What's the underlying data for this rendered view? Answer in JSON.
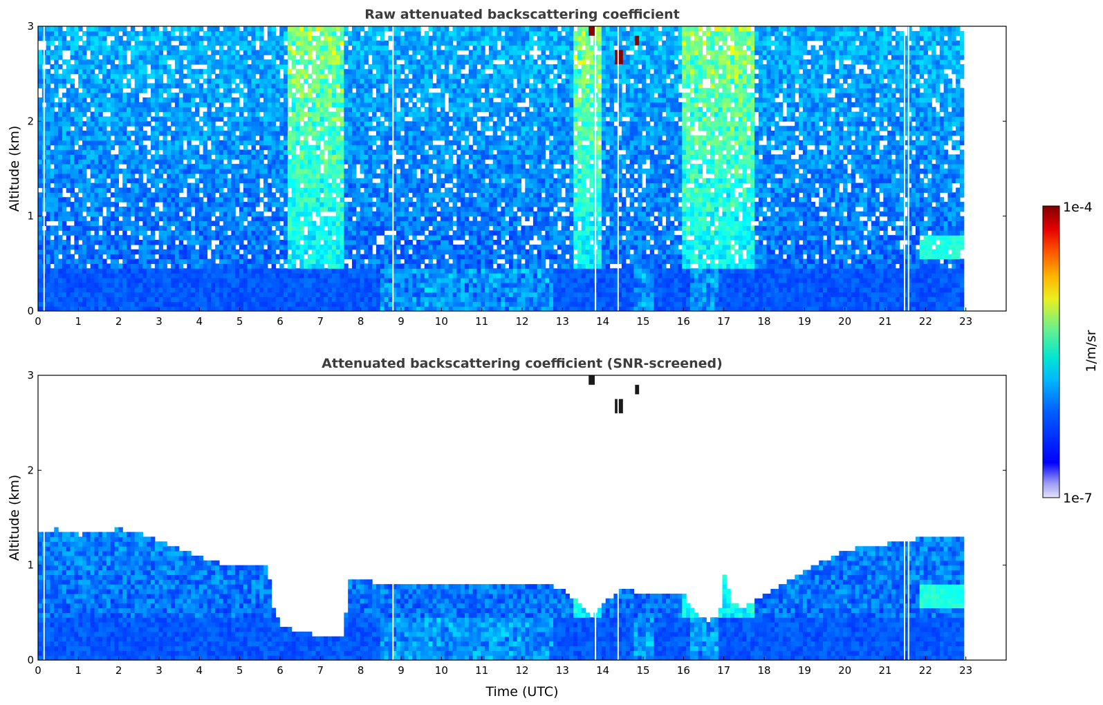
{
  "chart_data": [
    {
      "type": "heatmap",
      "title": "Raw attenuated backscattering coefficient",
      "xlabel": "",
      "ylabel": "Altitude (km)",
      "xlim": [
        0,
        24
      ],
      "ylim": [
        0,
        3
      ],
      "x_ticks": [
        "0",
        "1",
        "2",
        "3",
        "4",
        "5",
        "6",
        "7",
        "8",
        "9",
        "10",
        "11",
        "12",
        "13",
        "14",
        "15",
        "16",
        "17",
        "18",
        "19",
        "20",
        "21",
        "22",
        "23"
      ],
      "y_ticks": [
        "0",
        "1",
        "2",
        "3"
      ],
      "data_time_range": [
        0,
        22.95
      ],
      "gaps_utc": [
        0.15,
        8.8,
        13.82,
        14.38,
        21.48,
        21.58
      ],
      "features": [
        {
          "kind": "surface_layer",
          "x": [
            0,
            23
          ],
          "top_km": 0.45
        },
        {
          "kind": "elevated_noise",
          "x": [
            6.2,
            7.6
          ],
          "level": "high"
        },
        {
          "kind": "elevated_noise",
          "x": [
            13.3,
            14.0
          ],
          "level": "high"
        },
        {
          "kind": "elevated_noise",
          "x": [
            16.0,
            17.8
          ],
          "level": "high"
        },
        {
          "kind": "cloud",
          "x": [
            13.65,
            13.8
          ],
          "y_km": [
            2.9,
            3.0
          ]
        },
        {
          "kind": "cloud",
          "x": [
            14.3,
            14.5
          ],
          "y_km": [
            2.6,
            2.75
          ]
        },
        {
          "kind": "cloud",
          "x": [
            14.8,
            14.9
          ],
          "y_km": [
            2.8,
            2.9
          ]
        },
        {
          "kind": "aerosol_layer",
          "x": [
            21.9,
            22.95
          ],
          "y_km": [
            0.55,
            0.8
          ]
        }
      ]
    },
    {
      "type": "heatmap",
      "title": "Attenuated backscattering coefficient (SNR-screened)",
      "xlabel": "Time (UTC)",
      "ylabel": "Altitude (km)",
      "xlim": [
        0,
        24
      ],
      "ylim": [
        0,
        3
      ],
      "x_ticks": [
        "0",
        "1",
        "2",
        "3",
        "4",
        "5",
        "6",
        "7",
        "8",
        "9",
        "10",
        "11",
        "12",
        "13",
        "14",
        "15",
        "16",
        "17",
        "18",
        "19",
        "20",
        "21",
        "22",
        "23"
      ],
      "y_ticks": [
        "0",
        "1",
        "2",
        "3"
      ],
      "data_time_range": [
        0,
        22.95
      ],
      "boundary_layer_top_km": {
        "x": [
          0,
          0.5,
          1,
          1.5,
          2,
          2.5,
          3,
          3.5,
          4,
          4.5,
          5,
          5.5,
          5.7,
          5.8,
          6.0,
          6.5,
          7.0,
          7.5,
          7.6,
          7.7,
          8,
          8.5,
          9,
          10,
          11,
          12,
          12.5,
          13,
          13.4,
          13.7,
          14,
          14.5,
          15,
          15.5,
          16,
          16.3,
          16.6,
          16.9,
          17.0,
          17.2,
          17.5,
          18,
          18.5,
          19,
          19.5,
          20,
          20.5,
          21,
          21.5,
          22,
          22.5,
          22.95
        ],
        "top": [
          1.35,
          1.38,
          1.32,
          1.35,
          1.38,
          1.35,
          1.25,
          1.18,
          1.08,
          1.02,
          1.0,
          1.0,
          1.0,
          0.6,
          0.35,
          0.3,
          0.26,
          0.26,
          0.3,
          0.85,
          0.85,
          0.8,
          0.78,
          0.78,
          0.8,
          0.8,
          0.8,
          0.75,
          0.6,
          0.45,
          0.6,
          0.75,
          0.7,
          0.72,
          0.7,
          0.48,
          0.42,
          0.48,
          0.9,
          0.6,
          0.55,
          0.7,
          0.8,
          0.95,
          1.05,
          1.15,
          1.2,
          1.22,
          1.25,
          1.3,
          1.28,
          1.28
        ]
      },
      "features": [
        {
          "kind": "cloud",
          "x": [
            13.65,
            13.8
          ],
          "y_km": [
            2.9,
            3.0
          ]
        },
        {
          "kind": "cloud",
          "x": [
            14.3,
            14.5
          ],
          "y_km": [
            2.6,
            2.75
          ]
        },
        {
          "kind": "cloud",
          "x": [
            14.8,
            14.9
          ],
          "y_km": [
            2.8,
            2.9
          ]
        },
        {
          "kind": "aerosol_layer",
          "x": [
            21.9,
            22.95
          ],
          "y_km": [
            0.55,
            0.8
          ]
        }
      ]
    }
  ],
  "colorbar": {
    "label": "1/m/sr",
    "max_label": "1e-4",
    "min_label": "1e-7",
    "scale": "log",
    "range": [
      1e-07,
      0.0001
    ],
    "colormap": "jet"
  }
}
